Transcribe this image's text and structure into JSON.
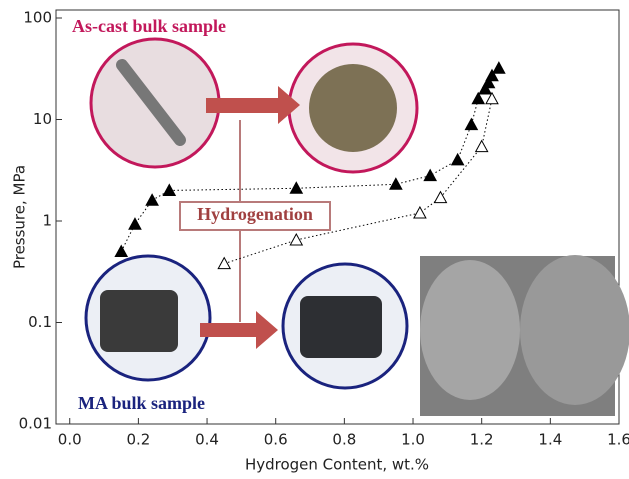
{
  "chart_data": {
    "type": "scatter",
    "xlabel": "Hydrogen Content, wt.%",
    "ylabel": "Pressure, MPa",
    "xlim": [
      -0.04,
      1.6
    ],
    "ylim": [
      0.01,
      100
    ],
    "log_y": true,
    "xticks": [
      {
        "value": 0,
        "label": "0.0"
      },
      0.2,
      0.4,
      0.6,
      0.8,
      {
        "value": 1,
        "label": "1.0"
      },
      1.2,
      1.4,
      1.6
    ],
    "yticks": [
      0.01,
      0.1,
      1,
      10,
      100
    ],
    "annotations": [
      "As-cast bulk sample",
      "Hydrogenation",
      "MA bulk sample"
    ],
    "series": [
      {
        "color": "#000000",
        "filled": true,
        "x": [
          0.15,
          0.19,
          0.24,
          0.29,
          0.66,
          0.95,
          1.05,
          1.13,
          1.17,
          1.19,
          1.21,
          1.22,
          1.23,
          1.25
        ],
        "values": [
          0.5,
          0.93,
          1.6,
          2.0,
          2.1,
          2.3,
          2.8,
          4.0,
          8.9,
          16,
          20,
          23,
          27,
          32
        ]
      },
      {
        "color": "#000000",
        "filled": false,
        "x": [
          0.45,
          0.66,
          1.02,
          1.08,
          1.2,
          1.23
        ],
        "values": [
          0.38,
          0.65,
          1.2,
          1.7,
          5.4,
          16
        ]
      }
    ]
  }
}
